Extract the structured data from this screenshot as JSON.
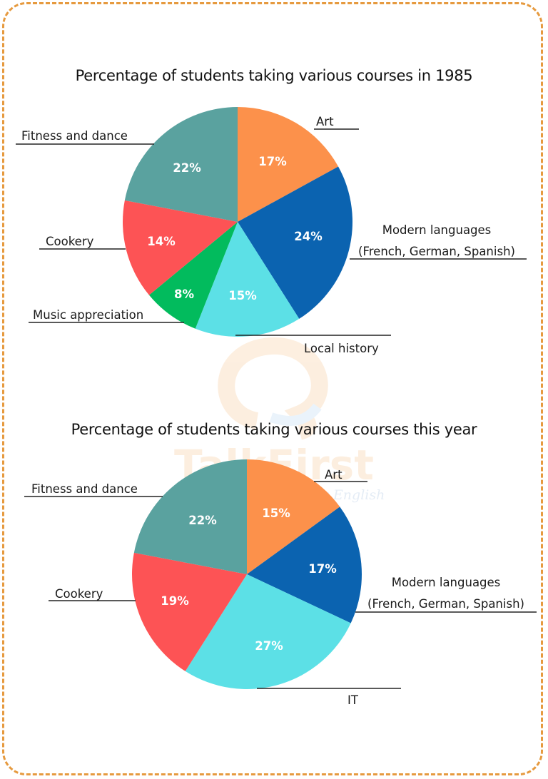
{
  "watermark": {
    "brand": "TalkFirst",
    "tagline": "Enjoy learning, enjoy English"
  },
  "charts": [
    {
      "title": "Percentage of students taking various courses in 1985",
      "slices": [
        {
          "label": "Art",
          "value": 17,
          "pct": "17%",
          "color": "#fc914b"
        },
        {
          "label": "Modern languages",
          "label2": "(French, German, Spanish)",
          "value": 24,
          "pct": "24%",
          "color": "#0b63b0"
        },
        {
          "label": "Local history",
          "value": 15,
          "pct": "15%",
          "color": "#5ce0e6"
        },
        {
          "label": "Music appreciation",
          "value": 8,
          "pct": "8%",
          "color": "#02bb5d"
        },
        {
          "label": "Cookery",
          "value": 14,
          "pct": "14%",
          "color": "#fd5355"
        },
        {
          "label": "Fitness and dance",
          "value": 22,
          "pct": "22%",
          "color": "#5aa29f"
        }
      ]
    },
    {
      "title": "Percentage of students taking various courses this year",
      "slices": [
        {
          "label": "Art",
          "value": 15,
          "pct": "15%",
          "color": "#fc914b"
        },
        {
          "label": "Modern languages",
          "label2": "(French, German, Spanish)",
          "value": 17,
          "pct": "17%",
          "color": "#0b63b0"
        },
        {
          "label": "IT",
          "value": 27,
          "pct": "27%",
          "color": "#5ce0e6"
        },
        {
          "label": "Cookery",
          "value": 19,
          "pct": "19%",
          "color": "#fd5355"
        },
        {
          "label": "Fitness and dance",
          "value": 22,
          "pct": "22%",
          "color": "#5aa29f"
        }
      ]
    }
  ],
  "chart_data": [
    {
      "type": "pie",
      "title": "Percentage of students taking various courses in 1985",
      "categories": [
        "Art",
        "Modern languages (French, German, Spanish)",
        "Local history",
        "Music appreciation",
        "Cookery",
        "Fitness and dance"
      ],
      "values": [
        17,
        24,
        15,
        8,
        14,
        22
      ],
      "colors": [
        "#fc914b",
        "#0b63b0",
        "#5ce0e6",
        "#02bb5d",
        "#fd5355",
        "#5aa29f"
      ],
      "start_angle": "12 o'clock, clockwise",
      "legend": "none (leader-line labels)"
    },
    {
      "type": "pie",
      "title": "Percentage of students taking various courses this year",
      "categories": [
        "Art",
        "Modern languages (French, German, Spanish)",
        "IT",
        "Cookery",
        "Fitness and dance"
      ],
      "values": [
        15,
        17,
        27,
        19,
        22
      ],
      "colors": [
        "#fc914b",
        "#0b63b0",
        "#5ce0e6",
        "#fd5355",
        "#5aa29f"
      ],
      "start_angle": "12 o'clock, clockwise",
      "legend": "none (leader-line labels)"
    }
  ]
}
